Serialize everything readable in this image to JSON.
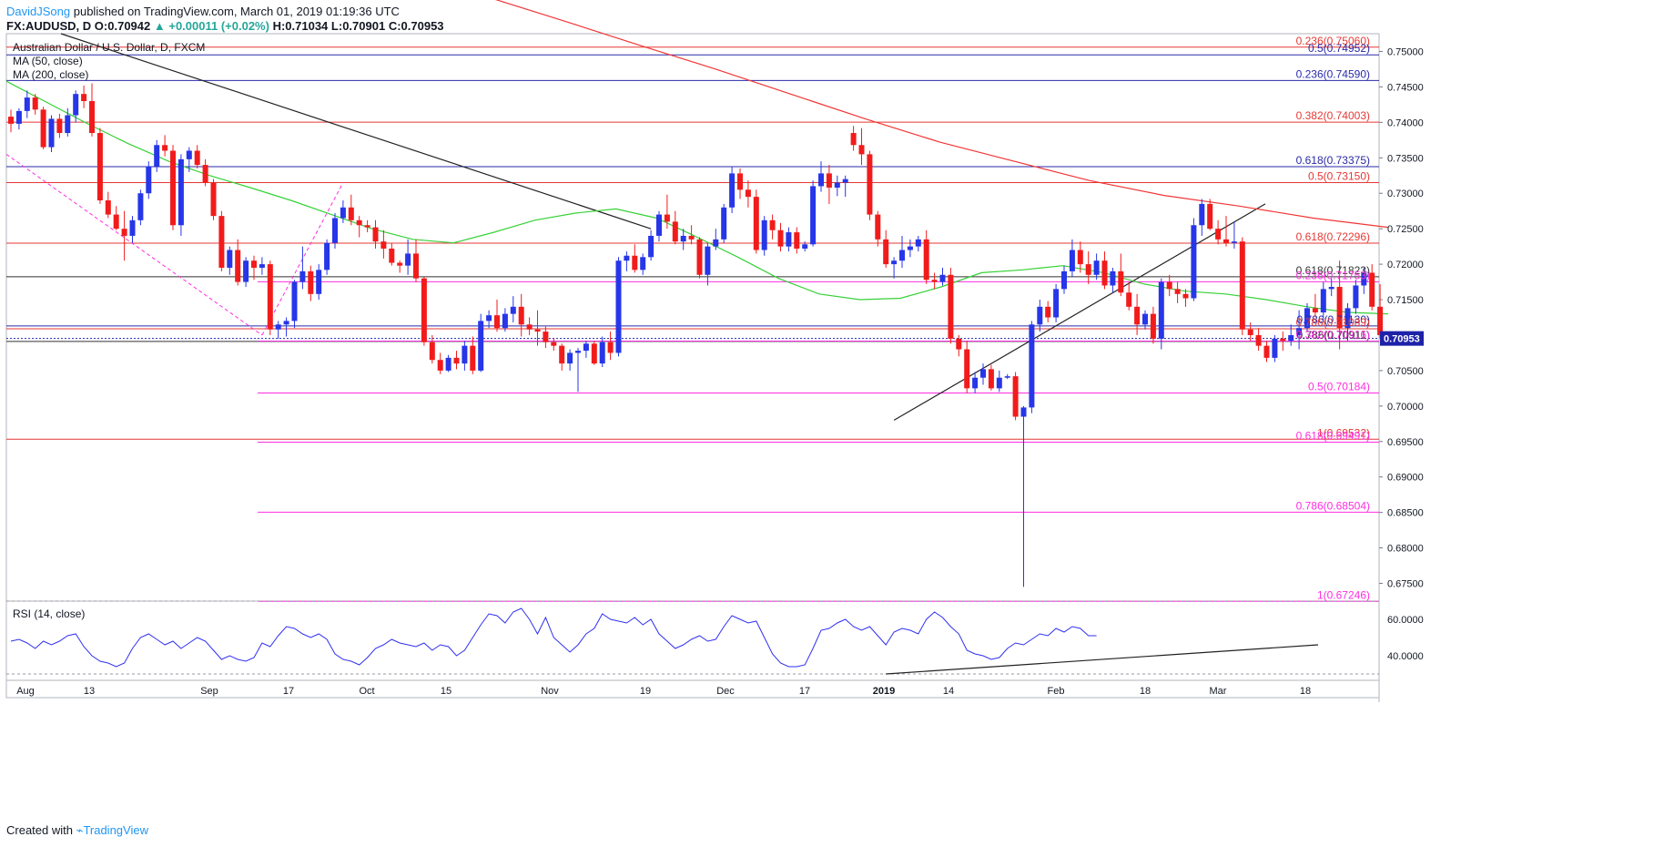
{
  "header": {
    "author": "DavidJSong",
    "published": "published on TradingView.com, March 01, 2019 01:19:36 UTC",
    "symbol": "FX:AUDUSD, D",
    "open_label": "O:",
    "open": "0.70942",
    "change": "▲ +0.00011 (+0.02%)",
    "high_label": "H:",
    "high": "0.71034",
    "low_label": "L:",
    "low": "0.70901",
    "close_label": "C:",
    "close": "0.70953"
  },
  "legend": {
    "title": "Australian Dollar / U.S. Dollar, D, FXCM",
    "ma50": "MA (50, close)",
    "ma200": "MA (200, close)",
    "rsi": "RSI (14, close)"
  },
  "footer": {
    "created_with": "Created with",
    "brand": "TradingView"
  },
  "colors": {
    "up": "#2636e8",
    "down": "#f21b1b",
    "ma50": "#36d236",
    "ma200": "#f23636",
    "rsi": "#3030f0",
    "magenta": "#ff2ee0",
    "price_tag": "#1e22a8",
    "blue_level": "#2a2aa8"
  },
  "chart_data": {
    "type": "candlestick",
    "y_range": [
      0.6725,
      0.7525
    ],
    "y_ticks": [
      "0.75000",
      "0.74500",
      "0.74000",
      "0.73500",
      "0.73000",
      "0.72500",
      "0.72000",
      "0.71500",
      "0.71000",
      "0.70500",
      "0.70000",
      "0.69500",
      "0.69000",
      "0.68500",
      "0.68000",
      "0.67500"
    ],
    "last_price": "0.70953",
    "x_ticks": [
      "Aug",
      "13",
      "Sep",
      "17",
      "Oct",
      "15",
      "Nov",
      "19",
      "Dec",
      "17",
      "2019",
      "14",
      "Feb",
      "18",
      "Mar",
      "18"
    ],
    "candles": [
      [
        0.7408,
        0.7418,
        0.7386,
        0.7398
      ],
      [
        0.7398,
        0.742,
        0.739,
        0.7416
      ],
      [
        0.7416,
        0.7445,
        0.7406,
        0.7435
      ],
      [
        0.7435,
        0.744,
        0.7411,
        0.7418
      ],
      [
        0.7418,
        0.7422,
        0.7362,
        0.7365
      ],
      [
        0.7365,
        0.741,
        0.7358,
        0.7405
      ],
      [
        0.7405,
        0.7412,
        0.7378,
        0.7385
      ],
      [
        0.7385,
        0.742,
        0.738,
        0.741
      ],
      [
        0.741,
        0.7445,
        0.74,
        0.744
      ],
      [
        0.744,
        0.7452,
        0.742,
        0.743
      ],
      [
        0.743,
        0.7455,
        0.738,
        0.7385
      ],
      [
        0.7385,
        0.7392,
        0.7285,
        0.729
      ],
      [
        0.729,
        0.7302,
        0.7265,
        0.727
      ],
      [
        0.727,
        0.7282,
        0.7248,
        0.725
      ],
      [
        0.725,
        0.7275,
        0.7205,
        0.724
      ],
      [
        0.724,
        0.7268,
        0.723,
        0.7262
      ],
      [
        0.7262,
        0.7305,
        0.7255,
        0.73
      ],
      [
        0.73,
        0.7345,
        0.7292,
        0.7338
      ],
      [
        0.7338,
        0.7375,
        0.733,
        0.7368
      ],
      [
        0.7368,
        0.7382,
        0.7352,
        0.736
      ],
      [
        0.736,
        0.7368,
        0.7248,
        0.7255
      ],
      [
        0.7255,
        0.7355,
        0.724,
        0.7348
      ],
      [
        0.7348,
        0.7365,
        0.733,
        0.736
      ],
      [
        0.736,
        0.7368,
        0.7335,
        0.734
      ],
      [
        0.734,
        0.7348,
        0.731,
        0.7315
      ],
      [
        0.7315,
        0.732,
        0.7262,
        0.7268
      ],
      [
        0.7268,
        0.7275,
        0.719,
        0.7195
      ],
      [
        0.7195,
        0.7225,
        0.7185,
        0.722
      ],
      [
        0.722,
        0.7235,
        0.717,
        0.7175
      ],
      [
        0.7175,
        0.721,
        0.7168,
        0.7205
      ],
      [
        0.7205,
        0.7212,
        0.7178,
        0.7195
      ],
      [
        0.7195,
        0.721,
        0.7185,
        0.72
      ],
      [
        0.72,
        0.7205,
        0.71,
        0.7108
      ],
      [
        0.7108,
        0.712,
        0.7095,
        0.7115
      ],
      [
        0.7115,
        0.7125,
        0.7098,
        0.712
      ],
      [
        0.712,
        0.7178,
        0.711,
        0.7175
      ],
      [
        0.7175,
        0.7225,
        0.7165,
        0.719
      ],
      [
        0.719,
        0.7198,
        0.7148,
        0.7158
      ],
      [
        0.7158,
        0.72,
        0.715,
        0.7192
      ],
      [
        0.7192,
        0.7235,
        0.7185,
        0.723
      ],
      [
        0.723,
        0.7272,
        0.7222,
        0.7265
      ],
      [
        0.7265,
        0.729,
        0.7258,
        0.728
      ],
      [
        0.728,
        0.7298,
        0.7255,
        0.7262
      ],
      [
        0.7262,
        0.7268,
        0.7238,
        0.7255
      ],
      [
        0.7255,
        0.7262,
        0.7245,
        0.7252
      ],
      [
        0.7252,
        0.7262,
        0.7222,
        0.7232
      ],
      [
        0.7232,
        0.7248,
        0.7208,
        0.7222
      ],
      [
        0.7222,
        0.723,
        0.7198,
        0.7202
      ],
      [
        0.7202,
        0.7205,
        0.7188,
        0.7198
      ],
      [
        0.7198,
        0.7235,
        0.7185,
        0.7215
      ],
      [
        0.7215,
        0.7235,
        0.7175,
        0.718
      ],
      [
        0.718,
        0.7182,
        0.7085,
        0.709
      ],
      [
        0.709,
        0.71,
        0.706,
        0.7065
      ],
      [
        0.7065,
        0.7075,
        0.7045,
        0.705
      ],
      [
        0.705,
        0.7072,
        0.7048,
        0.7068
      ],
      [
        0.7068,
        0.7078,
        0.7052,
        0.706
      ],
      [
        0.706,
        0.7092,
        0.705,
        0.7085
      ],
      [
        0.7085,
        0.7098,
        0.7045,
        0.705
      ],
      [
        0.705,
        0.713,
        0.7048,
        0.712
      ],
      [
        0.712,
        0.7135,
        0.711,
        0.7128
      ],
      [
        0.7128,
        0.715,
        0.7105,
        0.711
      ],
      [
        0.711,
        0.7138,
        0.7105,
        0.713
      ],
      [
        0.713,
        0.7155,
        0.7118,
        0.714
      ],
      [
        0.714,
        0.7158,
        0.7098,
        0.7115
      ],
      [
        0.7115,
        0.7125,
        0.71,
        0.7108
      ],
      [
        0.7108,
        0.7135,
        0.7085,
        0.7105
      ],
      [
        0.7105,
        0.7112,
        0.7082,
        0.709
      ],
      [
        0.709,
        0.7095,
        0.7078,
        0.7085
      ],
      [
        0.7085,
        0.7088,
        0.705,
        0.706
      ],
      [
        0.706,
        0.708,
        0.705,
        0.7075
      ],
      [
        0.7075,
        0.7082,
        0.702,
        0.7078
      ],
      [
        0.7078,
        0.7092,
        0.7068,
        0.7088
      ],
      [
        0.7088,
        0.7092,
        0.7058,
        0.706
      ],
      [
        0.706,
        0.7098,
        0.7055,
        0.709
      ],
      [
        0.709,
        0.7105,
        0.7065,
        0.7075
      ],
      [
        0.7075,
        0.721,
        0.707,
        0.7205
      ],
      [
        0.7205,
        0.7218,
        0.719,
        0.7212
      ],
      [
        0.7212,
        0.7228,
        0.7188,
        0.7192
      ],
      [
        0.7192,
        0.7215,
        0.7185,
        0.721
      ],
      [
        0.721,
        0.7248,
        0.7205,
        0.724
      ],
      [
        0.724,
        0.7275,
        0.7232,
        0.727
      ],
      [
        0.727,
        0.7298,
        0.725,
        0.726
      ],
      [
        0.726,
        0.7275,
        0.7228,
        0.7232
      ],
      [
        0.7232,
        0.725,
        0.722,
        0.724
      ],
      [
        0.724,
        0.7255,
        0.7228,
        0.7235
      ],
      [
        0.7235,
        0.7238,
        0.718,
        0.7185
      ],
      [
        0.7185,
        0.723,
        0.717,
        0.7225
      ],
      [
        0.7225,
        0.725,
        0.722,
        0.7235
      ],
      [
        0.7235,
        0.7285,
        0.723,
        0.728
      ],
      [
        0.728,
        0.7338,
        0.7272,
        0.7328
      ],
      [
        0.7328,
        0.7335,
        0.7292,
        0.7305
      ],
      [
        0.7305,
        0.7318,
        0.728,
        0.7295
      ],
      [
        0.7295,
        0.7305,
        0.7215,
        0.722
      ],
      [
        0.722,
        0.7268,
        0.7212,
        0.7262
      ],
      [
        0.7262,
        0.727,
        0.7235,
        0.7248
      ],
      [
        0.7248,
        0.7258,
        0.7218,
        0.7225
      ],
      [
        0.7225,
        0.7252,
        0.7218,
        0.7245
      ],
      [
        0.7245,
        0.7252,
        0.7215,
        0.7222
      ],
      [
        0.7222,
        0.7232,
        0.7218,
        0.7228
      ],
      [
        0.7228,
        0.7318,
        0.7225,
        0.731
      ],
      [
        0.731,
        0.7345,
        0.7302,
        0.7328
      ],
      [
        0.7328,
        0.734,
        0.7285,
        0.7308
      ],
      [
        0.7308,
        0.7325,
        0.7296,
        0.7315
      ],
      [
        0.7315,
        0.7325,
        0.7295,
        0.732
      ],
      [
        0.7385,
        0.7395,
        0.736,
        0.7368
      ],
      [
        0.7368,
        0.7392,
        0.734,
        0.7355
      ],
      [
        0.7355,
        0.736,
        0.7262,
        0.727
      ],
      [
        0.727,
        0.7275,
        0.7225,
        0.7235
      ],
      [
        0.7235,
        0.7248,
        0.7195,
        0.72
      ],
      [
        0.72,
        0.721,
        0.718,
        0.7205
      ],
      [
        0.7205,
        0.724,
        0.7195,
        0.722
      ],
      [
        0.722,
        0.7235,
        0.721,
        0.7225
      ],
      [
        0.7225,
        0.724,
        0.7218,
        0.7235
      ],
      [
        0.7235,
        0.7248,
        0.7172,
        0.7178
      ],
      [
        0.7178,
        0.7188,
        0.7165,
        0.7175
      ],
      [
        0.7175,
        0.7195,
        0.717,
        0.7185
      ],
      [
        0.7185,
        0.7195,
        0.7088,
        0.7095
      ],
      [
        0.7095,
        0.71,
        0.707,
        0.708
      ],
      [
        0.708,
        0.7092,
        0.7018,
        0.7025
      ],
      [
        0.7025,
        0.7048,
        0.7018,
        0.704
      ],
      [
        0.704,
        0.706,
        0.703,
        0.7052
      ],
      [
        0.7052,
        0.7058,
        0.7022,
        0.7025
      ],
      [
        0.7025,
        0.705,
        0.702,
        0.704
      ],
      [
        0.704,
        0.7045,
        0.7038,
        0.7042
      ],
      [
        0.7042,
        0.7048,
        0.698,
        0.6985
      ],
      [
        0.6985,
        0.7,
        0.6745,
        0.6998
      ],
      [
        0.6998,
        0.712,
        0.699,
        0.7115
      ],
      [
        0.7115,
        0.715,
        0.7105,
        0.714
      ],
      [
        0.714,
        0.7148,
        0.7118,
        0.7125
      ],
      [
        0.7125,
        0.7172,
        0.7118,
        0.7165
      ],
      [
        0.7165,
        0.7198,
        0.7158,
        0.719
      ],
      [
        0.719,
        0.7235,
        0.7182,
        0.722
      ],
      [
        0.722,
        0.7232,
        0.7188,
        0.72
      ],
      [
        0.72,
        0.7218,
        0.7172,
        0.7185
      ],
      [
        0.7185,
        0.7215,
        0.7178,
        0.7205
      ],
      [
        0.7205,
        0.7218,
        0.7165,
        0.717
      ],
      [
        0.717,
        0.7195,
        0.716,
        0.719
      ],
      [
        0.719,
        0.7215,
        0.7155,
        0.716
      ],
      [
        0.716,
        0.7175,
        0.7135,
        0.714
      ],
      [
        0.714,
        0.7158,
        0.71,
        0.7115
      ],
      [
        0.7115,
        0.7135,
        0.7108,
        0.713
      ],
      [
        0.713,
        0.714,
        0.7088,
        0.7095
      ],
      [
        0.7095,
        0.718,
        0.708,
        0.7175
      ],
      [
        0.7175,
        0.7185,
        0.7155,
        0.7165
      ],
      [
        0.7165,
        0.7175,
        0.7145,
        0.7158
      ],
      [
        0.7158,
        0.7165,
        0.714,
        0.7152
      ],
      [
        0.7152,
        0.7265,
        0.7148,
        0.7255
      ],
      [
        0.7255,
        0.7292,
        0.724,
        0.7285
      ],
      [
        0.7285,
        0.7292,
        0.7248,
        0.725
      ],
      [
        0.725,
        0.7262,
        0.7228,
        0.7235
      ],
      [
        0.7235,
        0.7268,
        0.7225,
        0.723
      ],
      [
        0.723,
        0.726,
        0.7222,
        0.7232
      ],
      [
        0.7232,
        0.7238,
        0.71,
        0.7108
      ],
      [
        0.7108,
        0.7118,
        0.7092,
        0.71
      ],
      [
        0.71,
        0.711,
        0.7078,
        0.7085
      ],
      [
        0.7085,
        0.7092,
        0.7062,
        0.7068
      ],
      [
        0.7068,
        0.71,
        0.7062,
        0.7095
      ],
      [
        0.7095,
        0.7105,
        0.7078,
        0.7092
      ],
      [
        0.7092,
        0.7115,
        0.7085,
        0.71
      ],
      [
        0.71,
        0.7135,
        0.708,
        0.711
      ],
      [
        0.711,
        0.7145,
        0.7105,
        0.7138
      ],
      [
        0.7138,
        0.7158,
        0.7125,
        0.7132
      ],
      [
        0.7132,
        0.7175,
        0.7122,
        0.7165
      ],
      [
        0.7165,
        0.718,
        0.7155,
        0.7168
      ],
      [
        0.7168,
        0.7205,
        0.708,
        0.711
      ],
      [
        0.711,
        0.7145,
        0.7092,
        0.7138
      ],
      [
        0.7138,
        0.7178,
        0.713,
        0.717
      ],
      [
        0.717,
        0.7195,
        0.7158,
        0.7188
      ],
      [
        0.7188,
        0.72,
        0.7135,
        0.714
      ],
      [
        0.714,
        0.7172,
        0.7095,
        0.71
      ],
      [
        0.7094,
        0.7103,
        0.709,
        0.7095
      ]
    ],
    "ma50": [
      0.7458,
      0.7428,
      0.7398,
      0.737,
      0.7345,
      0.7325,
      0.7308,
      0.729,
      0.727,
      0.725,
      0.7235,
      0.723,
      0.7245,
      0.7262,
      0.7272,
      0.7278,
      0.7265,
      0.7238,
      0.721,
      0.718,
      0.7158,
      0.715,
      0.7152,
      0.7168,
      0.7188,
      0.7192,
      0.7198,
      0.7188,
      0.7172,
      0.7162,
      0.7158,
      0.715,
      0.714,
      0.7132,
      0.713
    ],
    "ma200": [
      0.7575,
      0.7542,
      0.7508,
      0.7475,
      0.744,
      0.7405,
      0.7372,
      0.7345,
      0.7318,
      0.7297,
      0.7282,
      0.7265,
      0.7252
    ],
    "fib_levels": [
      {
        "label": "0.236(0.75060)",
        "price": 0.7506,
        "color": "#e53935",
        "from_x": 7
      },
      {
        "label": "0.5(0.74952)",
        "price": 0.74952,
        "color": "#2a2aa8",
        "from_x": 7
      },
      {
        "label": "0.236(0.74590)",
        "price": 0.7459,
        "color": "#2a2aa8",
        "from_x": 7
      },
      {
        "label": "0.382(0.74003)",
        "price": 0.74003,
        "color": "#e53935",
        "from_x": 7
      },
      {
        "label": "0.618(0.73375)",
        "price": 0.73375,
        "color": "#2a2aa8",
        "from_x": 7
      },
      {
        "label": "0.5(0.73150)",
        "price": 0.7315,
        "color": "#e53935",
        "from_x": 7
      },
      {
        "label": "0.618(0.72296)",
        "price": 0.72296,
        "color": "#e53935",
        "from_x": 7
      },
      {
        "label": "0.618(0.71823)",
        "price": 0.71823,
        "color": "#333333",
        "from_x": 7
      },
      {
        "label": "0.236(0.71753)",
        "price": 0.71753,
        "color": "#ff2ee0",
        "from_x": 283
      },
      {
        "label": "0.786(0.71130)",
        "price": 0.7113,
        "color": "#2a2aa8",
        "from_x": 7
      },
      {
        "label": "0.786(0.71089)",
        "price": 0.71089,
        "color": "#e53935",
        "from_x": 7
      },
      {
        "label": "0.786(0.70911)",
        "price": 0.70911,
        "color": "#333333",
        "from_x": 7
      },
      {
        "label": "0.382(0.70916)",
        "price": 0.70916,
        "color": "#ff2ee0",
        "from_x": 283
      },
      {
        "label": "0.5(0.70184)",
        "price": 0.70184,
        "color": "#ff2ee0",
        "from_x": 283
      },
      {
        "label": "1(0.69532)",
        "price": 0.69532,
        "color": "#e53935",
        "from_x": 7
      },
      {
        "label": "0.618(0.69491)",
        "price": 0.69491,
        "color": "#ff2ee0",
        "from_x": 283
      },
      {
        "label": "0.786(0.68504)",
        "price": 0.68504,
        "color": "#ff2ee0",
        "from_x": 283
      },
      {
        "label": "1(0.67246)",
        "price": 0.67246,
        "color": "#ff2ee0",
        "from_x": 283
      }
    ],
    "rsi_range": [
      30,
      70
    ],
    "rsi_ticks": [
      "60.0000",
      "40.0000"
    ],
    "rsi": [
      48,
      49,
      47,
      44,
      48,
      46,
      48,
      51,
      52,
      45,
      40,
      37,
      36,
      34,
      36,
      44,
      50,
      52,
      49,
      46,
      48,
      44,
      47,
      50,
      48,
      43,
      38,
      40,
      38,
      37,
      39,
      47,
      45,
      51,
      56,
      55,
      52,
      50,
      52,
      49,
      41,
      38,
      37,
      35,
      39,
      44,
      46,
      49,
      47,
      46,
      45,
      47,
      43,
      46,
      45,
      40,
      43,
      50,
      57,
      63,
      62,
      58,
      64,
      66,
      60,
      52,
      61,
      50,
      46,
      42,
      46,
      52,
      55,
      63,
      60,
      59,
      58,
      61,
      57,
      60,
      52,
      48,
      44,
      46,
      49,
      51,
      48,
      49,
      56,
      62,
      60,
      58,
      59,
      50,
      41,
      36,
      34,
      34,
      35,
      44,
      54,
      55,
      58,
      60,
      56,
      54,
      56,
      51,
      46,
      53,
      55,
      54,
      52,
      60,
      64,
      61,
      56,
      52,
      43,
      41,
      40,
      38,
      39,
      44,
      47,
      46,
      49,
      52,
      51,
      55,
      53,
      56,
      55,
      51,
      51
    ]
  }
}
